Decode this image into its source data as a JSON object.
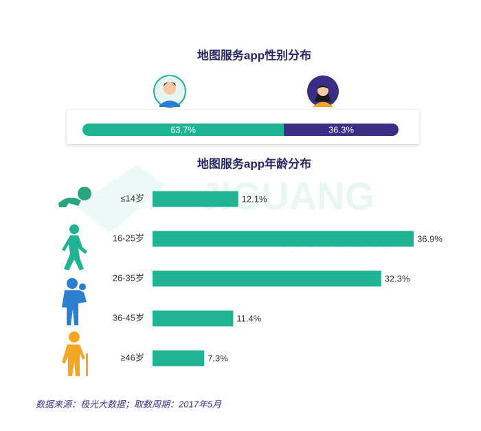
{
  "chart_data": [
    {
      "type": "stacked-bar",
      "title": "地图服务app性别分布",
      "values": [
        63.7,
        36.3
      ],
      "value_labels": [
        "63.7%",
        "36.3%"
      ],
      "colors": [
        "#1db393",
        "#3b2c86"
      ]
    },
    {
      "type": "hbar",
      "title": "地图服务app年龄分布",
      "categories": [
        "≤14岁",
        "16-25岁",
        "26-35岁",
        "36-45岁",
        "≥46岁"
      ],
      "values": [
        12.1,
        36.9,
        32.3,
        11.4,
        7.3
      ],
      "value_labels": [
        "12.1%",
        "36.9%",
        "32.3%",
        "11.4%",
        "7.3%"
      ],
      "color": "#1db393"
    }
  ],
  "watermark": {
    "logo": "JIGUANG",
    "tagline": "极光 数据服务"
  },
  "source": "数据来源：极光大数据；取数周期：2017年5月"
}
